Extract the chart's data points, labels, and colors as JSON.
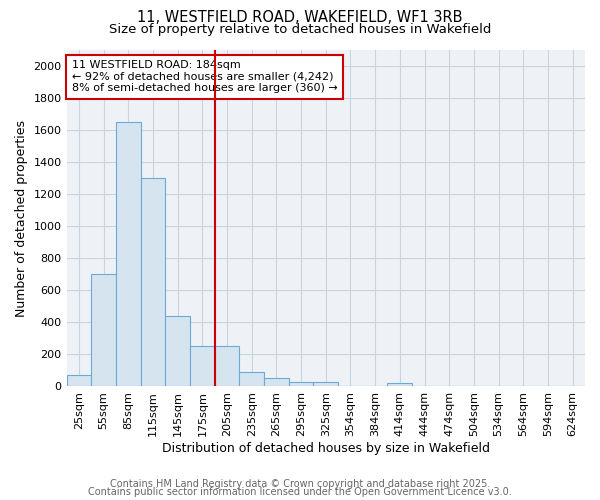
{
  "title1": "11, WESTFIELD ROAD, WAKEFIELD, WF1 3RB",
  "title2": "Size of property relative to detached houses in Wakefield",
  "xlabel": "Distribution of detached houses by size in Wakefield",
  "ylabel": "Number of detached properties",
  "bar_categories": [
    "25sqm",
    "55sqm",
    "85sqm",
    "115sqm",
    "145sqm",
    "175sqm",
    "205sqm",
    "235sqm",
    "265sqm",
    "295sqm",
    "325sqm",
    "354sqm",
    "384sqm",
    "414sqm",
    "444sqm",
    "474sqm",
    "504sqm",
    "534sqm",
    "564sqm",
    "594sqm",
    "624sqm"
  ],
  "bar_values": [
    70,
    700,
    1650,
    1300,
    440,
    250,
    250,
    90,
    55,
    30,
    25,
    0,
    0,
    20,
    0,
    0,
    0,
    0,
    0,
    0,
    0
  ],
  "bar_color": "#d6e4f0",
  "bar_edge_color": "#6aaad4",
  "vline_color": "#cc0000",
  "annotation_text": "11 WESTFIELD ROAD: 184sqm\n← 92% of detached houses are smaller (4,242)\n8% of semi-detached houses are larger (360) →",
  "annotation_box_color": "white",
  "annotation_box_edge_color": "#cc0000",
  "ylim": [
    0,
    2100
  ],
  "yticks": [
    0,
    200,
    400,
    600,
    800,
    1000,
    1200,
    1400,
    1600,
    1800,
    2000
  ],
  "grid_color": "#c8d4e0",
  "plot_bg_color": "#eef2f7",
  "fig_bg_color": "white",
  "footnote1": "Contains HM Land Registry data © Crown copyright and database right 2025.",
  "footnote2": "Contains public sector information licensed under the Open Government Licence v3.0.",
  "title_fontsize": 10.5,
  "subtitle_fontsize": 9.5,
  "axis_label_fontsize": 9,
  "tick_fontsize": 8,
  "annotation_fontsize": 8,
  "footnote_fontsize": 7
}
